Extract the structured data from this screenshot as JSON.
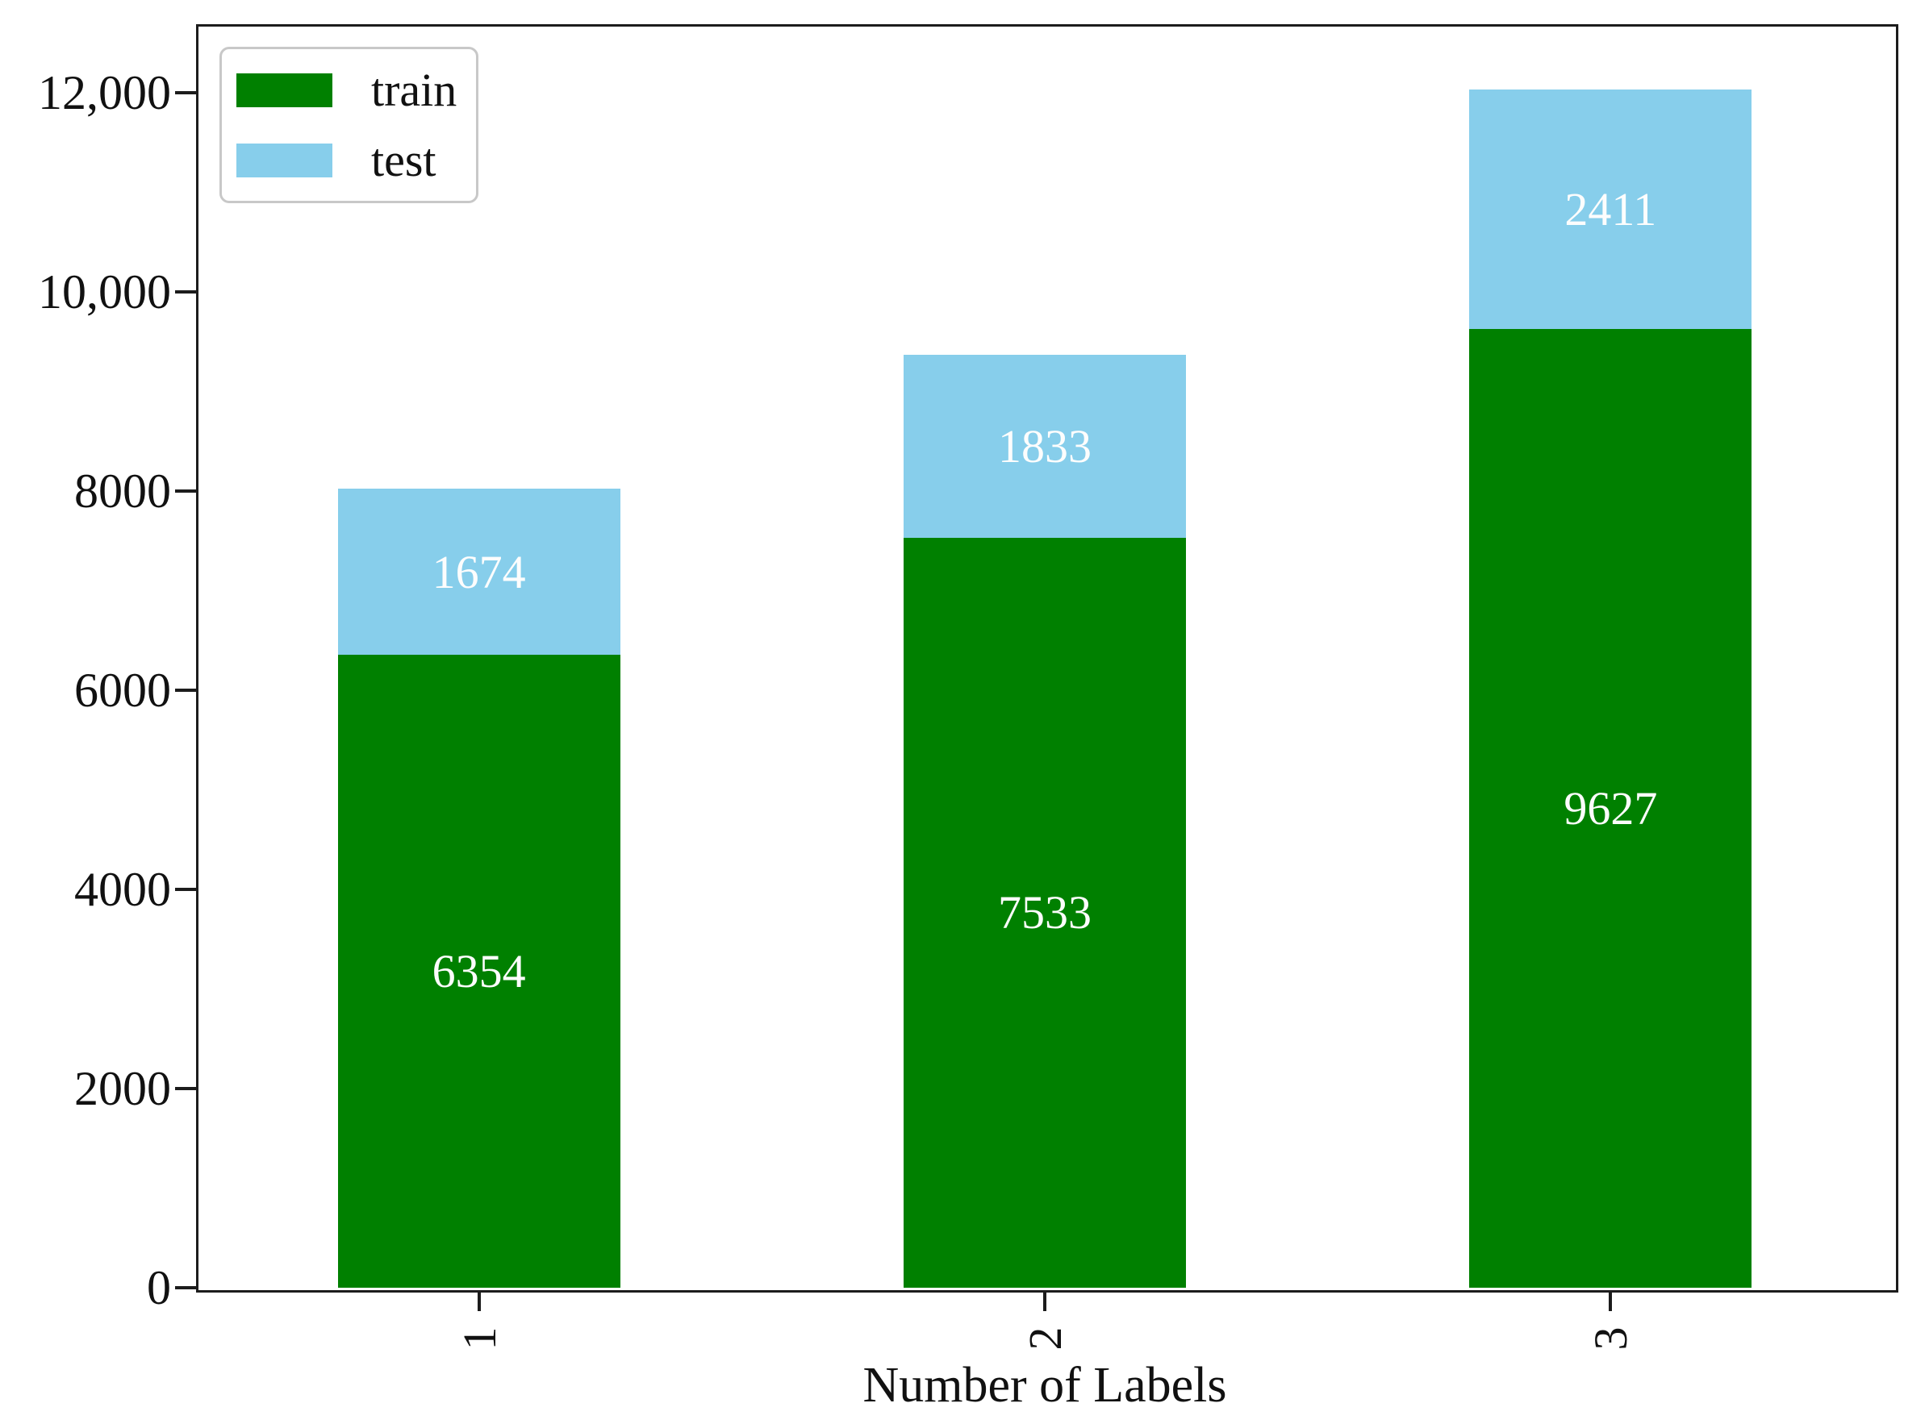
{
  "chart_data": {
    "type": "bar",
    "stacked": true,
    "title": "",
    "xlabel": "Number of Labels",
    "ylabel": "",
    "categories": [
      "1",
      "2",
      "3"
    ],
    "series": [
      {
        "name": "train",
        "color": "#008000",
        "values": [
          6354,
          7533,
          9627
        ]
      },
      {
        "name": "test",
        "color": "#87ceeb",
        "values": [
          1674,
          1833,
          2411
        ]
      }
    ],
    "bar_value_labels_shown": true,
    "bar_totals": [
      8028,
      9366,
      12038
    ],
    "yticks": [
      {
        "value": 0,
        "label": "0"
      },
      {
        "value": 2000,
        "label": "2000"
      },
      {
        "value": 4000,
        "label": "4000"
      },
      {
        "value": 6000,
        "label": "6000"
      },
      {
        "value": 8000,
        "label": "8000"
      },
      {
        "value": 10000,
        "label": "10,000"
      },
      {
        "value": 12000,
        "label": "12,000"
      }
    ],
    "ylim": [
      0,
      12690
    ],
    "xtick_rotation": 90,
    "grid": false,
    "legend": {
      "position": "upper-left",
      "entries": [
        "train",
        "test"
      ]
    }
  },
  "colors": {
    "axis": "#1c1c1c",
    "tick_text": "#111111",
    "bar_label_text": "#fdfdfd",
    "legend_border": "#c8c8c8",
    "background": "#ffffff"
  }
}
